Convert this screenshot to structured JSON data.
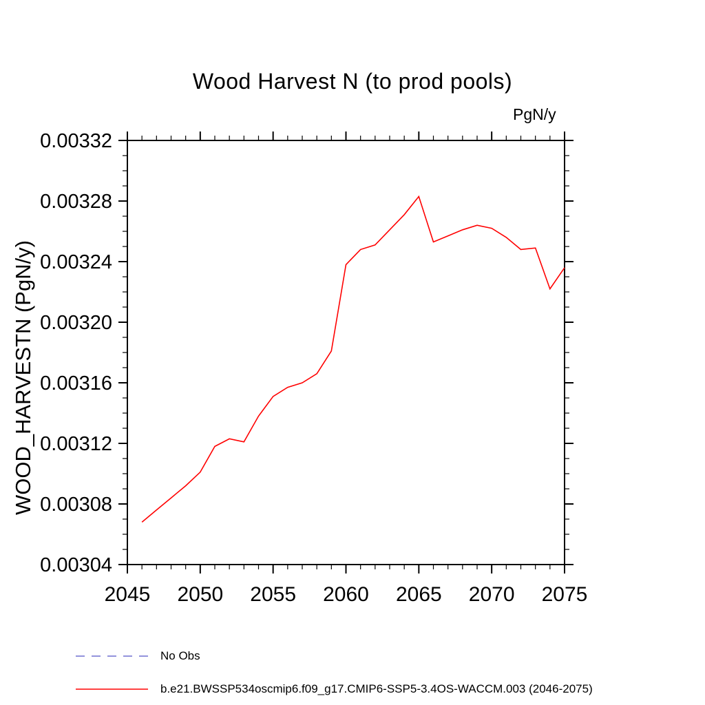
{
  "chart_data": {
    "type": "line",
    "title": "Wood Harvest N (to prod pools)",
    "units_label": "PgN/y",
    "ylabel": "WOOD_HARVESTN  (PgN/y)",
    "xlim": [
      2045,
      2075
    ],
    "ylim": [
      0.00304,
      0.00332
    ],
    "grid": false,
    "legend_position": "bottom-left",
    "x_major_ticks": [
      2045,
      2050,
      2055,
      2060,
      2065,
      2070,
      2075
    ],
    "x_minor_step": 1,
    "y_major_ticks": [
      0.00304,
      0.00308,
      0.00312,
      0.00316,
      0.0032,
      0.00324,
      0.00328,
      0.00332
    ],
    "y_tick_labels": [
      "0.00304",
      "0.00308",
      "0.00312",
      "0.00316",
      "0.00320",
      "0.00324",
      "0.00328",
      "0.00332"
    ],
    "y_minor_step": 1e-05,
    "series": [
      {
        "name": "b.e21.BWSSP534oscmip6.f09_g17.CMIP6-SSP5-3.4OS-WACCM.003 (2046-2075)",
        "color": "#ff0000",
        "style": "solid",
        "x": [
          2046,
          2047,
          2048,
          2049,
          2050,
          2051,
          2052,
          2053,
          2054,
          2055,
          2056,
          2057,
          2058,
          2059,
          2060,
          2061,
          2062,
          2063,
          2064,
          2065,
          2066,
          2067,
          2068,
          2069,
          2070,
          2071,
          2072,
          2073,
          2074,
          2075
        ],
        "values": [
          0.003068,
          0.003076,
          0.003084,
          0.003092,
          0.003101,
          0.003118,
          0.003123,
          0.003121,
          0.003138,
          0.003151,
          0.003157,
          0.00316,
          0.003166,
          0.003181,
          0.003238,
          0.003248,
          0.003251,
          0.003261,
          0.003271,
          0.003283,
          0.003253,
          0.003257,
          0.003261,
          0.003264,
          0.003262,
          0.003256,
          0.003248,
          0.003249,
          0.003222,
          0.003236
        ]
      }
    ],
    "legend": [
      {
        "label": "No Obs",
        "color": "#6e6ed1",
        "style": "dashed"
      },
      {
        "label": "b.e21.BWSSP534oscmip6.f09_g17.CMIP6-SSP5-3.4OS-WACCM.003 (2046-2075)",
        "color": "#ff0000",
        "style": "solid"
      }
    ]
  }
}
